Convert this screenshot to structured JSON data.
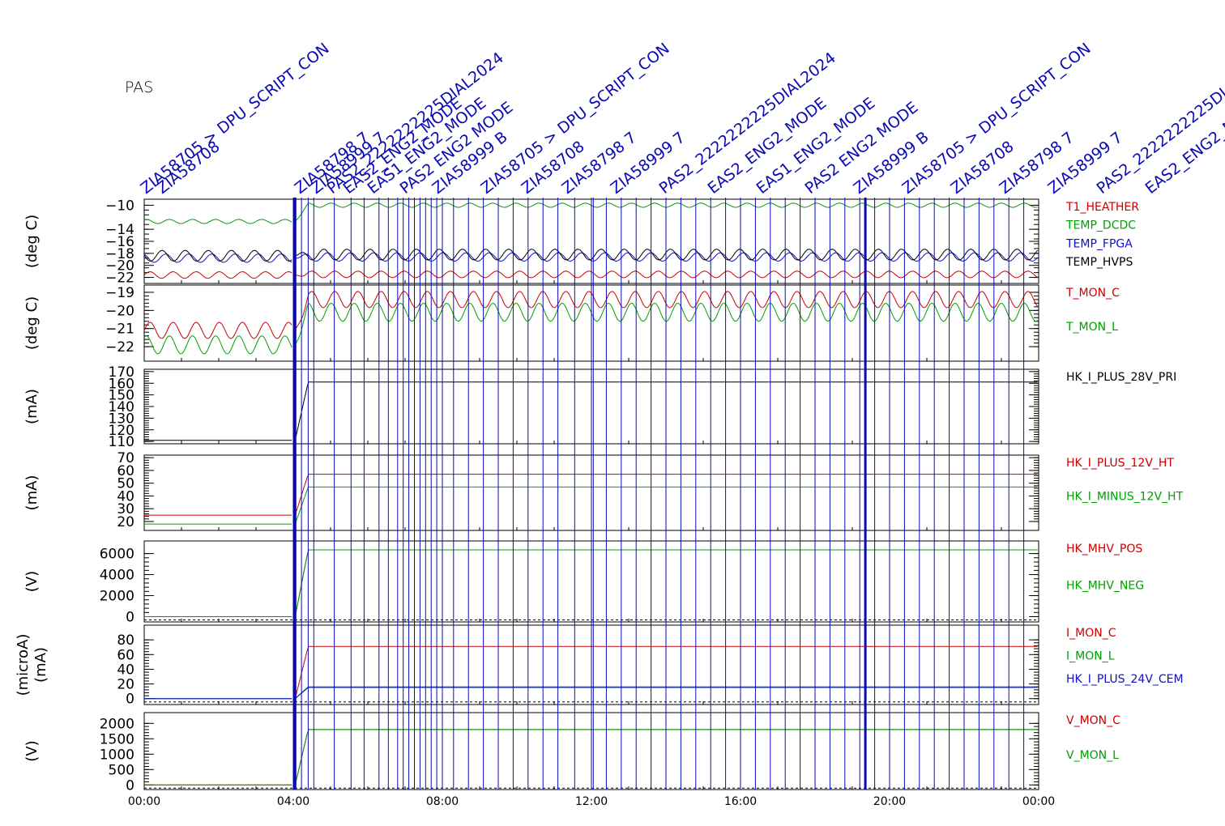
{
  "title": "PAS",
  "colors": {
    "red": "#cc0000",
    "green": "#00a000",
    "blue": "#1010c8",
    "black": "#000000",
    "event": "#0a0ab4"
  },
  "chart_data": {
    "type": "line",
    "x_unit": "time of day (hours)",
    "xlim": [
      0,
      24
    ],
    "x_ticks": [
      "00:00",
      "04:00",
      "08:00",
      "12:00",
      "16:00",
      "20:00",
      "00:00"
    ],
    "x_tick_values": [
      0,
      4,
      8,
      12,
      16,
      20,
      24
    ],
    "data_gap": [
      0,
      4.05
    ],
    "event_markers": {
      "color": "#0a0ab4",
      "times": [
        4.0,
        4.02,
        4.05,
        4.22,
        4.4,
        4.55,
        5.1,
        5.55,
        5.9,
        6.3,
        6.55,
        6.8,
        6.95,
        7.1,
        7.25,
        7.4,
        7.55,
        7.7,
        7.85,
        8.0,
        8.3,
        8.7,
        9.1,
        9.5,
        9.9,
        10.3,
        10.7,
        11.1,
        11.55,
        12.0,
        12.05,
        12.4,
        12.8,
        13.2,
        13.6,
        14.0,
        14.4,
        14.8,
        15.2,
        15.6,
        16.0,
        16.4,
        16.8,
        17.2,
        17.6,
        18.0,
        18.4,
        18.8,
        19.2,
        19.6,
        20.0,
        20.4,
        20.8,
        21.2,
        21.6,
        22.0,
        22.4,
        22.8,
        23.2,
        23.6
      ],
      "bold_times": [
        4.05,
        19.35
      ],
      "labels": [
        "ZIA58705 > DPU_SCRIPT_CON",
        "ZIA58708",
        "ZIA58798 7",
        "ZIA58999 7",
        "PAS2_2222222225DIAL2024",
        "EAS2_ENG2_MODE",
        "EAS1_ENG2_MODE",
        "PAS2 ENG2 MODE",
        "ZIA58999 B"
      ]
    },
    "panels": [
      {
        "ylabel": "(deg C)",
        "ylim": [
          -23,
          -9
        ],
        "yticks": [
          -10,
          -14,
          -16,
          -18,
          -20,
          -22
        ],
        "series": [
          {
            "name": "T1_HEATHER",
            "color": "#cc0000",
            "before": -21.6,
            "after": -21.5,
            "amp": 0.55,
            "period": 0.62
          },
          {
            "name": "TEMP_DCDC",
            "color": "#00a000",
            "before": -12.7,
            "after": -10.0,
            "amp": 0.35,
            "period": 0.62
          },
          {
            "name": "TEMP_FPGA",
            "color": "#1010c8",
            "before": -18.8,
            "after": -18.6,
            "amp": 0.7,
            "period": 0.62
          },
          {
            "name": "TEMP_HVPS",
            "color": "#000000",
            "before": -18.4,
            "after": -18.2,
            "amp": 0.9,
            "period": 0.62
          }
        ]
      },
      {
        "ylabel": "(deg C)",
        "ylim": [
          -22.8,
          -18.6
        ],
        "yticks": [
          -19,
          -20,
          -21,
          -22
        ],
        "series": [
          {
            "name": "T_MON_C",
            "color": "#cc0000",
            "before": -21.1,
            "after": -19.4,
            "amp": 0.45,
            "period": 0.62
          },
          {
            "name": "T_MON_L",
            "color": "#00a000",
            "before": -21.9,
            "after": -20.1,
            "amp": 0.5,
            "period": 0.62
          }
        ]
      },
      {
        "ylabel": "(mA)",
        "ylim": [
          108,
          172
        ],
        "yticks": [
          170,
          160,
          150,
          140,
          130,
          120,
          110
        ],
        "series": [
          {
            "name": "HK_I_PLUS_28V_PRI",
            "color": "#000000",
            "before": 111,
            "after": 161,
            "amp": 0,
            "period": 1
          }
        ]
      },
      {
        "ylabel": "(mA)",
        "ylim": [
          13,
          72
        ],
        "yticks": [
          70,
          60,
          50,
          40,
          30,
          20
        ],
        "series": [
          {
            "name": "HK_I_PLUS_12V_HT",
            "color": "#cc0000",
            "before": 25,
            "after": 57,
            "amp": 0,
            "period": 1
          },
          {
            "name": "HK_I_MINUS_12V_HT",
            "color": "#00a000",
            "before": 18,
            "after": 47,
            "amp": 0,
            "period": 1
          }
        ]
      },
      {
        "ylabel": "(V)",
        "ylim": [
          -500,
          7200
        ],
        "yticks": [
          6000,
          4000,
          2000,
          0
        ],
        "series": [
          {
            "name": "HK_MHV_POS",
            "color": "#cc0000",
            "before": 0,
            "after": 6350,
            "amp": 0,
            "period": 1
          },
          {
            "name": "HK_MHV_NEG",
            "color": "#00a000",
            "before": 0,
            "after": 6350,
            "amp": 0,
            "period": 1
          }
        ]
      },
      {
        "ylabel": "(microA)\n(mA)",
        "ylim": [
          -8,
          100
        ],
        "yticks": [
          80,
          60,
          40,
          20,
          0
        ],
        "series": [
          {
            "name": "I_MON_C",
            "color": "#cc0000",
            "before": 0,
            "after": 71,
            "amp": 0,
            "period": 1
          },
          {
            "name": "I_MON_L",
            "color": "#00a000",
            "before": 0,
            "after": 15,
            "amp": 0,
            "period": 1
          },
          {
            "name": "HK_I_PLUS_24V_CEM",
            "color": "#1010c8",
            "before": 0,
            "after": 16,
            "amp": 0,
            "period": 1
          }
        ]
      },
      {
        "ylabel": "(V)",
        "ylim": [
          -150,
          2350
        ],
        "yticks": [
          2000,
          1500,
          1000,
          500,
          0
        ],
        "series": [
          {
            "name": "V_MON_C",
            "color": "#cc0000",
            "before": 0,
            "after": 1800,
            "amp": 0,
            "period": 1
          },
          {
            "name": "V_MON_L",
            "color": "#00a000",
            "before": 0,
            "after": 1800,
            "amp": 0,
            "period": 1
          }
        ]
      }
    ]
  }
}
